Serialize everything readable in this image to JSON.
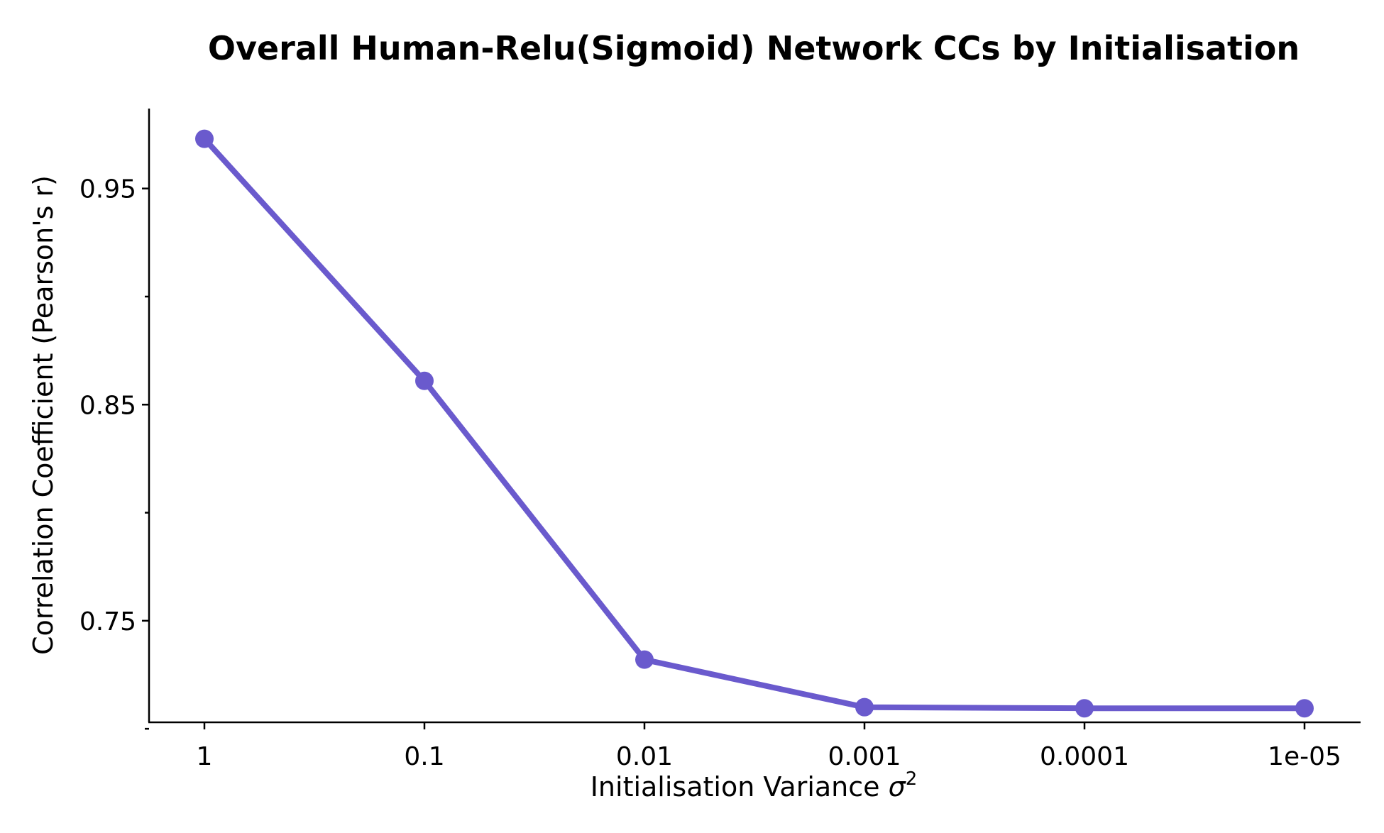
{
  "chart_data": {
    "type": "line",
    "title": "Overall Human-Relu(Sigmoid) Network CCs by Initialisation",
    "xlabel": "Initialisation Variance",
    "xlabel_symbol": "σ",
    "xlabel_superscript": "2",
    "ylabel": "Correlation Coefficient (Pearson's r)",
    "categories": [
      "1",
      "0.1",
      "0.01",
      "0.001",
      "0.0001",
      "1e-05"
    ],
    "series": [
      {
        "values": [
          0.973,
          0.861,
          0.732,
          0.71,
          0.7095,
          0.7095
        ],
        "color": "#6a5acd"
      }
    ],
    "ylim": [
      0.703,
      0.987
    ],
    "yticks_labeled": [
      "0.95",
      "0.85",
      "0.75"
    ],
    "yticks_labeled_values": [
      0.95,
      0.85,
      0.75
    ],
    "yticks_minor_values": [
      0.9,
      0.8,
      0.7
    ],
    "grid": false,
    "legend": "none"
  }
}
